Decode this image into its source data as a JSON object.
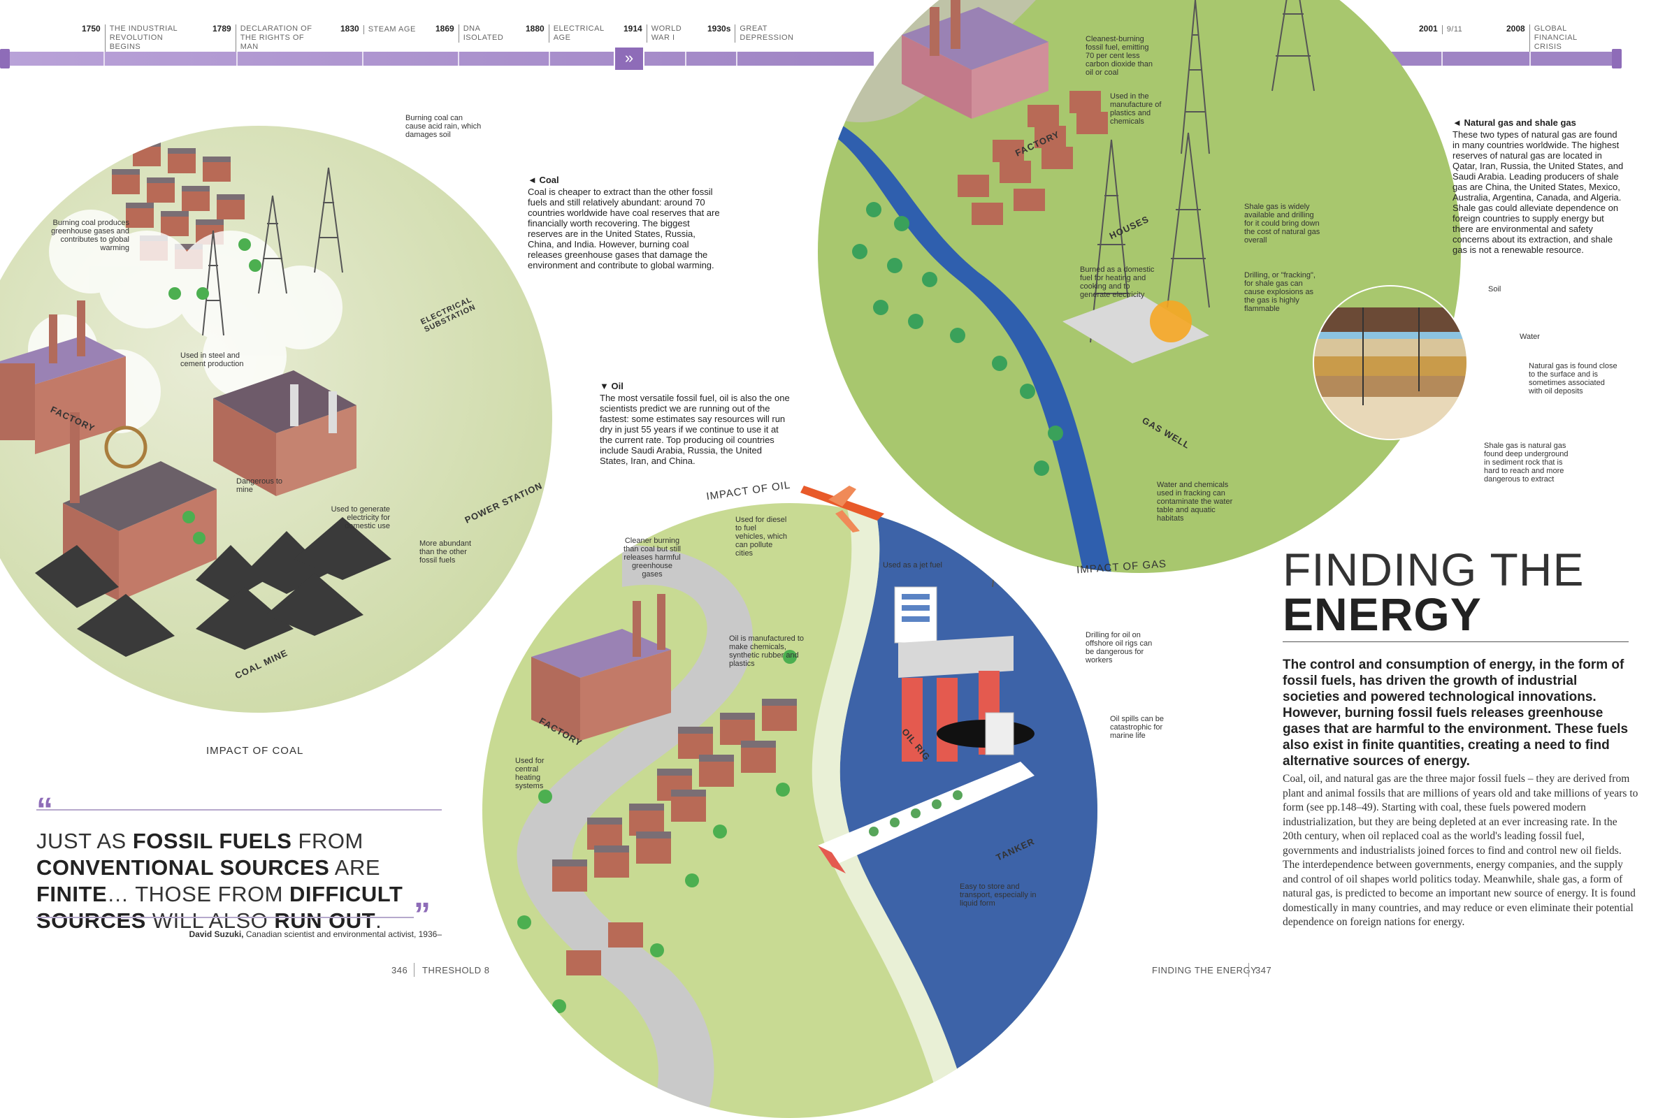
{
  "timeline": {
    "events": [
      {
        "year": "1750",
        "label": "THE INDUSTRIAL REVOLUTION BEGINS"
      },
      {
        "year": "1789",
        "label": "DECLARATION OF THE RIGHTS OF MAN"
      },
      {
        "year": "1830",
        "label": "STEAM AGE"
      },
      {
        "year": "1869",
        "label": "DNA ISOLATED"
      },
      {
        "year": "1880",
        "label": "ELECTRICAL AGE"
      },
      {
        "year": "1914",
        "label": "WORLD WAR I"
      },
      {
        "year": "1930s",
        "label": "GREAT DEPRESSION"
      },
      {
        "year": "2001",
        "label": "9/11"
      },
      {
        "year": "2008",
        "label": "GLOBAL FINANCIAL CRISIS"
      }
    ],
    "arrow_icon": "double-chevron-right",
    "bar_color": "#a88fc9"
  },
  "coal": {
    "title": "IMPACT OF COAL",
    "labels": {
      "acid_rain": "Burning coal can cause acid rain, which damages soil",
      "greenhouse": "Burning coal produces greenhouse gases and contributes to global warming",
      "steel": "Used in steel and cement production",
      "dangerous": "Dangerous to mine",
      "electricity": "Used to generate electricity for domestic use",
      "abundant": "More abundant than the other fossil fuels",
      "factory": "FACTORY",
      "substation": "ELECTRICAL SUBSTATION",
      "power_station": "POWER STATION",
      "coal_mine": "COAL MINE"
    },
    "info_heading": "◄ Coal",
    "info_text": "Coal is cheaper to extract than the other fossil fuels and still relatively abundant: around 70 countries worldwide have coal reserves that are financially worth recovering. The biggest reserves are in the United States, Russia, China, and India. However, burning coal releases greenhouse gases that damage the environment and contribute to global warming."
  },
  "oil": {
    "title": "IMPACT OF OIL",
    "info_heading": "▼ Oil",
    "info_text": "The most versatile fossil fuel, oil is also the one scientists predict we are running out of the fastest: some estimates say resources will run dry in just 55 years if we continue to use it at the current rate. Top producing oil countries include Saudi Arabia, Russia, the United States, Iran, and China.",
    "labels": {
      "cleaner": "Cleaner burning than coal but still releases harmful greenhouse gases",
      "diesel": "Used for diesel to fuel vehicles, which can pollute cities",
      "jet": "Used as a jet fuel",
      "chemicals": "Oil is manufactured to make chemicals, synthetic rubber and plastics",
      "heating": "Used for central heating systems",
      "drilling": "Drilling for oil on offshore oil rigs can be dangerous for workers",
      "spills": "Oil spills can be catastrophic for marine life",
      "transport": "Easy to store and transport, especially in liquid form",
      "factory": "FACTORY",
      "oil_rig": "OIL RIG",
      "tanker": "TANKER"
    }
  },
  "gas": {
    "title": "IMPACT OF GAS",
    "labels": {
      "cleanest": "Cleanest-burning fossil fuel, emitting 70 per cent less carbon dioxide than oil or coal",
      "plastics": "Used in the manufacture of plastics and chemicals",
      "shale_available": "Shale gas is widely available and drilling for it could bring down the cost of natural gas overall",
      "domestic": "Burned as a domestic fuel for heating and cooking and to generate electricity",
      "fracking": "Drilling, or \"fracking\", for shale gas can cause explosions as the gas is highly flammable",
      "water_chem": "Water and chemicals used in fracking can contaminate the water table and aquatic habitats",
      "factory": "FACTORY",
      "houses": "HOUSES",
      "gas_well": "GAS WELL"
    },
    "info_heading": "◄ Natural gas and shale gas",
    "info_text": "These two types of natural gas are found in many countries worldwide. The highest reserves of natural gas are located in Qatar, Iran, Russia, the United States, and Saudi Arabia. Leading producers of shale gas are China, the United States, Mexico, Australia, Argentina, Canada, and Algeria. Shale gas could alleviate dependence on foreign countries to supply energy but there are environmental and safety concerns about its extraction, and shale gas is not a renewable resource.",
    "section_labels": {
      "soil": "Soil",
      "water": "Water",
      "natural_gas": "Natural gas is found close to the surface and is sometimes associated with oil deposits",
      "shale_gas": "Shale gas is natural gas found deep underground in sediment rock that is hard to reach and more dangerous to extract"
    }
  },
  "quote": {
    "part1": "JUST AS ",
    "bold1": "FOSSIL FUELS",
    "part2": " FROM ",
    "bold2": "CONVENTIONAL SOURCES",
    "part3": " ARE ",
    "bold3": "FINITE",
    "part4": "… THOSE FROM ",
    "bold4": "DIFFICULT SOURCES",
    "part5": " WILL ALSO ",
    "bold5": "RUN OUT",
    "part6": ".",
    "author": "David Suzuki,",
    "author_desc": " Canadian scientist and environmental activist, 1936–",
    "accent_color": "#8e6cb8"
  },
  "article": {
    "heading_line1": "FINDING THE",
    "heading_line2": "ENERGY",
    "lead": "The control and consumption of energy, in the form of fossil fuels, has driven the growth of industrial societies and powered technological innovations. However, burning fossil fuels releases greenhouse gases that are harmful to the environment. These fuels also exist in finite quantities, creating a need to find alternative sources of energy.",
    "body": "Coal, oil, and natural gas are the three major fossil fuels – they are derived from plant and animal fossils that are millions of years old and take millions of years to form (see pp.148–49). Starting with coal, these fuels powered modern industrialization, but they are being depleted at an ever increasing rate. In the 20th century, when oil replaced coal as the world's leading fossil fuel, governments and industrialists joined forces to find and control new oil fields. The interdependence between governments, energy companies, and the supply and control of oil shapes world politics today. Meanwhile, shale gas, a form of natural gas, is predicted to become an important new source of energy. It is found domestically in many countries, and may reduce or even eliminate their potential dependence on foreign nations for energy."
  },
  "folios": {
    "left_num": "346",
    "left_text": "THRESHOLD 8",
    "right_text": "FINDING THE ENERGY",
    "right_num": "347"
  },
  "colors": {
    "grass": "#b9d27a",
    "road": "#c9c9c9",
    "water": "#3d63a8",
    "brick": "#b06a5a",
    "coal": "#3a3a3a",
    "accent": "#8e6cb8"
  }
}
